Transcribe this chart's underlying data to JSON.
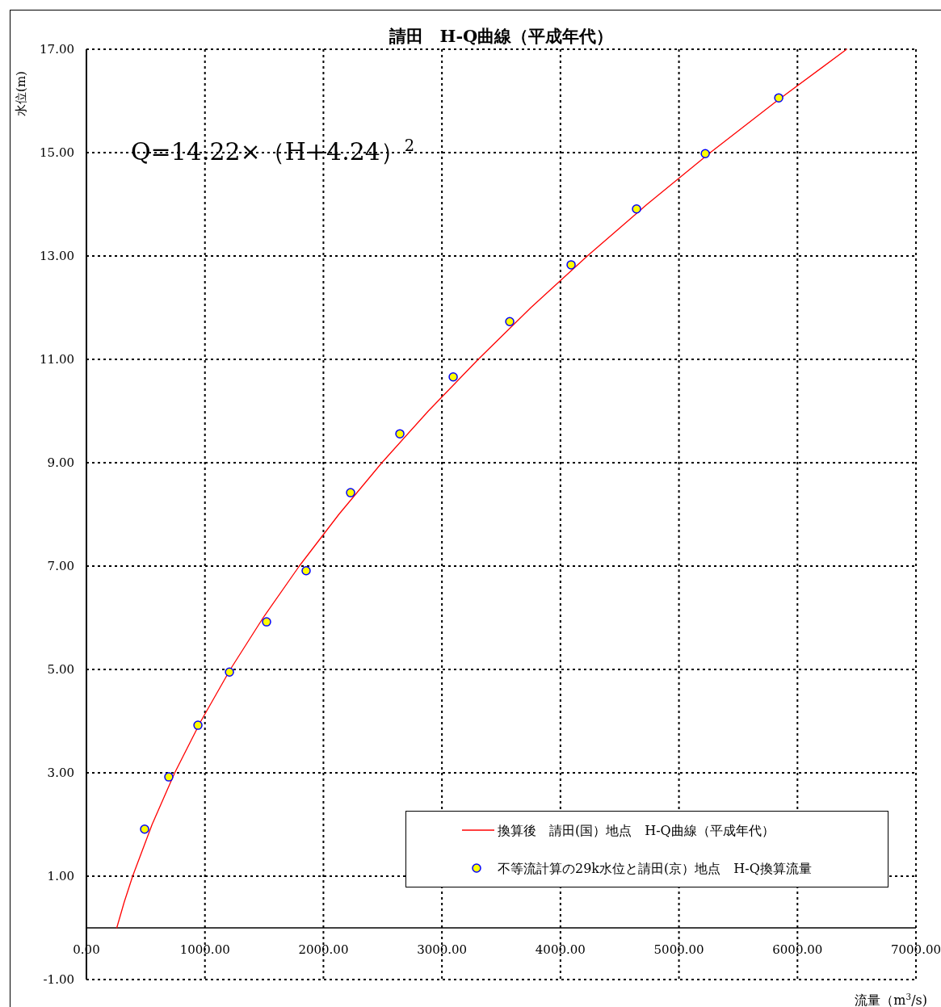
{
  "chart_data": {
    "type": "line",
    "title": "請田　H-Q曲線（平成年代）",
    "xlabel": "流量（m$^{3}$/s)",
    "ylabel": "水位(m)",
    "annotations": [
      "Q=14.22×（H+4.24）$^{2}$"
    ],
    "xlim": [
      0,
      7000
    ],
    "ylim": [
      -1,
      17
    ],
    "xticks": [
      {
        "value": 0,
        "label": "0.00"
      },
      {
        "value": 1000,
        "label": "1000.00"
      },
      {
        "value": 2000,
        "label": "2000.00"
      },
      {
        "value": 3000,
        "label": "3000.00"
      },
      {
        "value": 4000,
        "label": "4000.00"
      },
      {
        "value": 5000,
        "label": "5000.00"
      },
      {
        "value": 6000,
        "label": "6000.00"
      },
      {
        "value": 7000,
        "label": "7000.00"
      }
    ],
    "yticks": [
      {
        "value": -1,
        "label": "-1.00"
      },
      {
        "value": 1,
        "label": "1.00"
      },
      {
        "value": 3,
        "label": "3.00"
      },
      {
        "value": 5,
        "label": "5.00"
      },
      {
        "value": 7,
        "label": "7.00"
      },
      {
        "value": 9,
        "label": "9.00"
      },
      {
        "value": 11,
        "label": "11.00"
      },
      {
        "value": 13,
        "label": "13.00"
      },
      {
        "value": 15,
        "label": "15.00"
      },
      {
        "value": 17,
        "label": "17.00"
      }
    ],
    "grid": true,
    "legend": "bottom right",
    "series": [
      {
        "name": "換算後　請田(国）地点　H-Q曲線（平成年代）",
        "color": "#ff0000",
        "marker": "none",
        "line_style": "solid",
        "x": [
          256,
          319,
          390,
          554,
          745,
          966,
          1214,
          1491,
          1796,
          2130,
          2493,
          2885,
          3306,
          3750,
          4227,
          4731,
          5264,
          5826,
          6415
        ],
        "values": [
          0,
          0.5,
          1,
          2,
          3,
          4,
          5,
          6,
          7,
          8,
          9,
          10,
          11,
          12,
          13,
          14,
          15,
          16,
          17
        ]
      },
      {
        "name": "不等流計算の29k水位と請田(京）地点　H-Q換算流量",
        "type": "scatter",
        "color": "#ffff00",
        "marker": "circle",
        "x": [
          491,
          695,
          941,
          1207,
          1520,
          1854,
          2229,
          2645,
          3095,
          3572,
          4090,
          4642,
          5222,
          5842
        ],
        "values": [
          1.91,
          2.92,
          3.92,
          4.95,
          5.92,
          6.91,
          8.42,
          9.56,
          10.66,
          11.73,
          12.83,
          13.91,
          14.98,
          16.06
        ]
      }
    ]
  }
}
